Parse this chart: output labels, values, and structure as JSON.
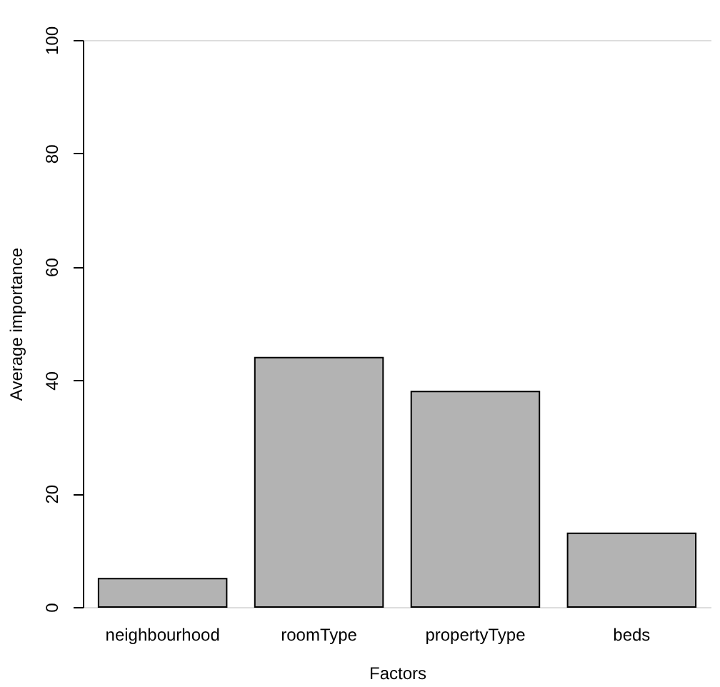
{
  "chart_data": {
    "type": "bar",
    "xlabel": "Factors",
    "ylabel": "Average importance",
    "categories": [
      "neighbourhood",
      "roomType",
      "propertyType",
      "beds"
    ],
    "values": [
      5,
      44,
      38,
      13
    ],
    "color": "#b3b3b3",
    "ylim": [
      0,
      100
    ],
    "yticks": [
      0,
      20,
      40,
      60,
      80,
      100
    ],
    "grid": false
  }
}
